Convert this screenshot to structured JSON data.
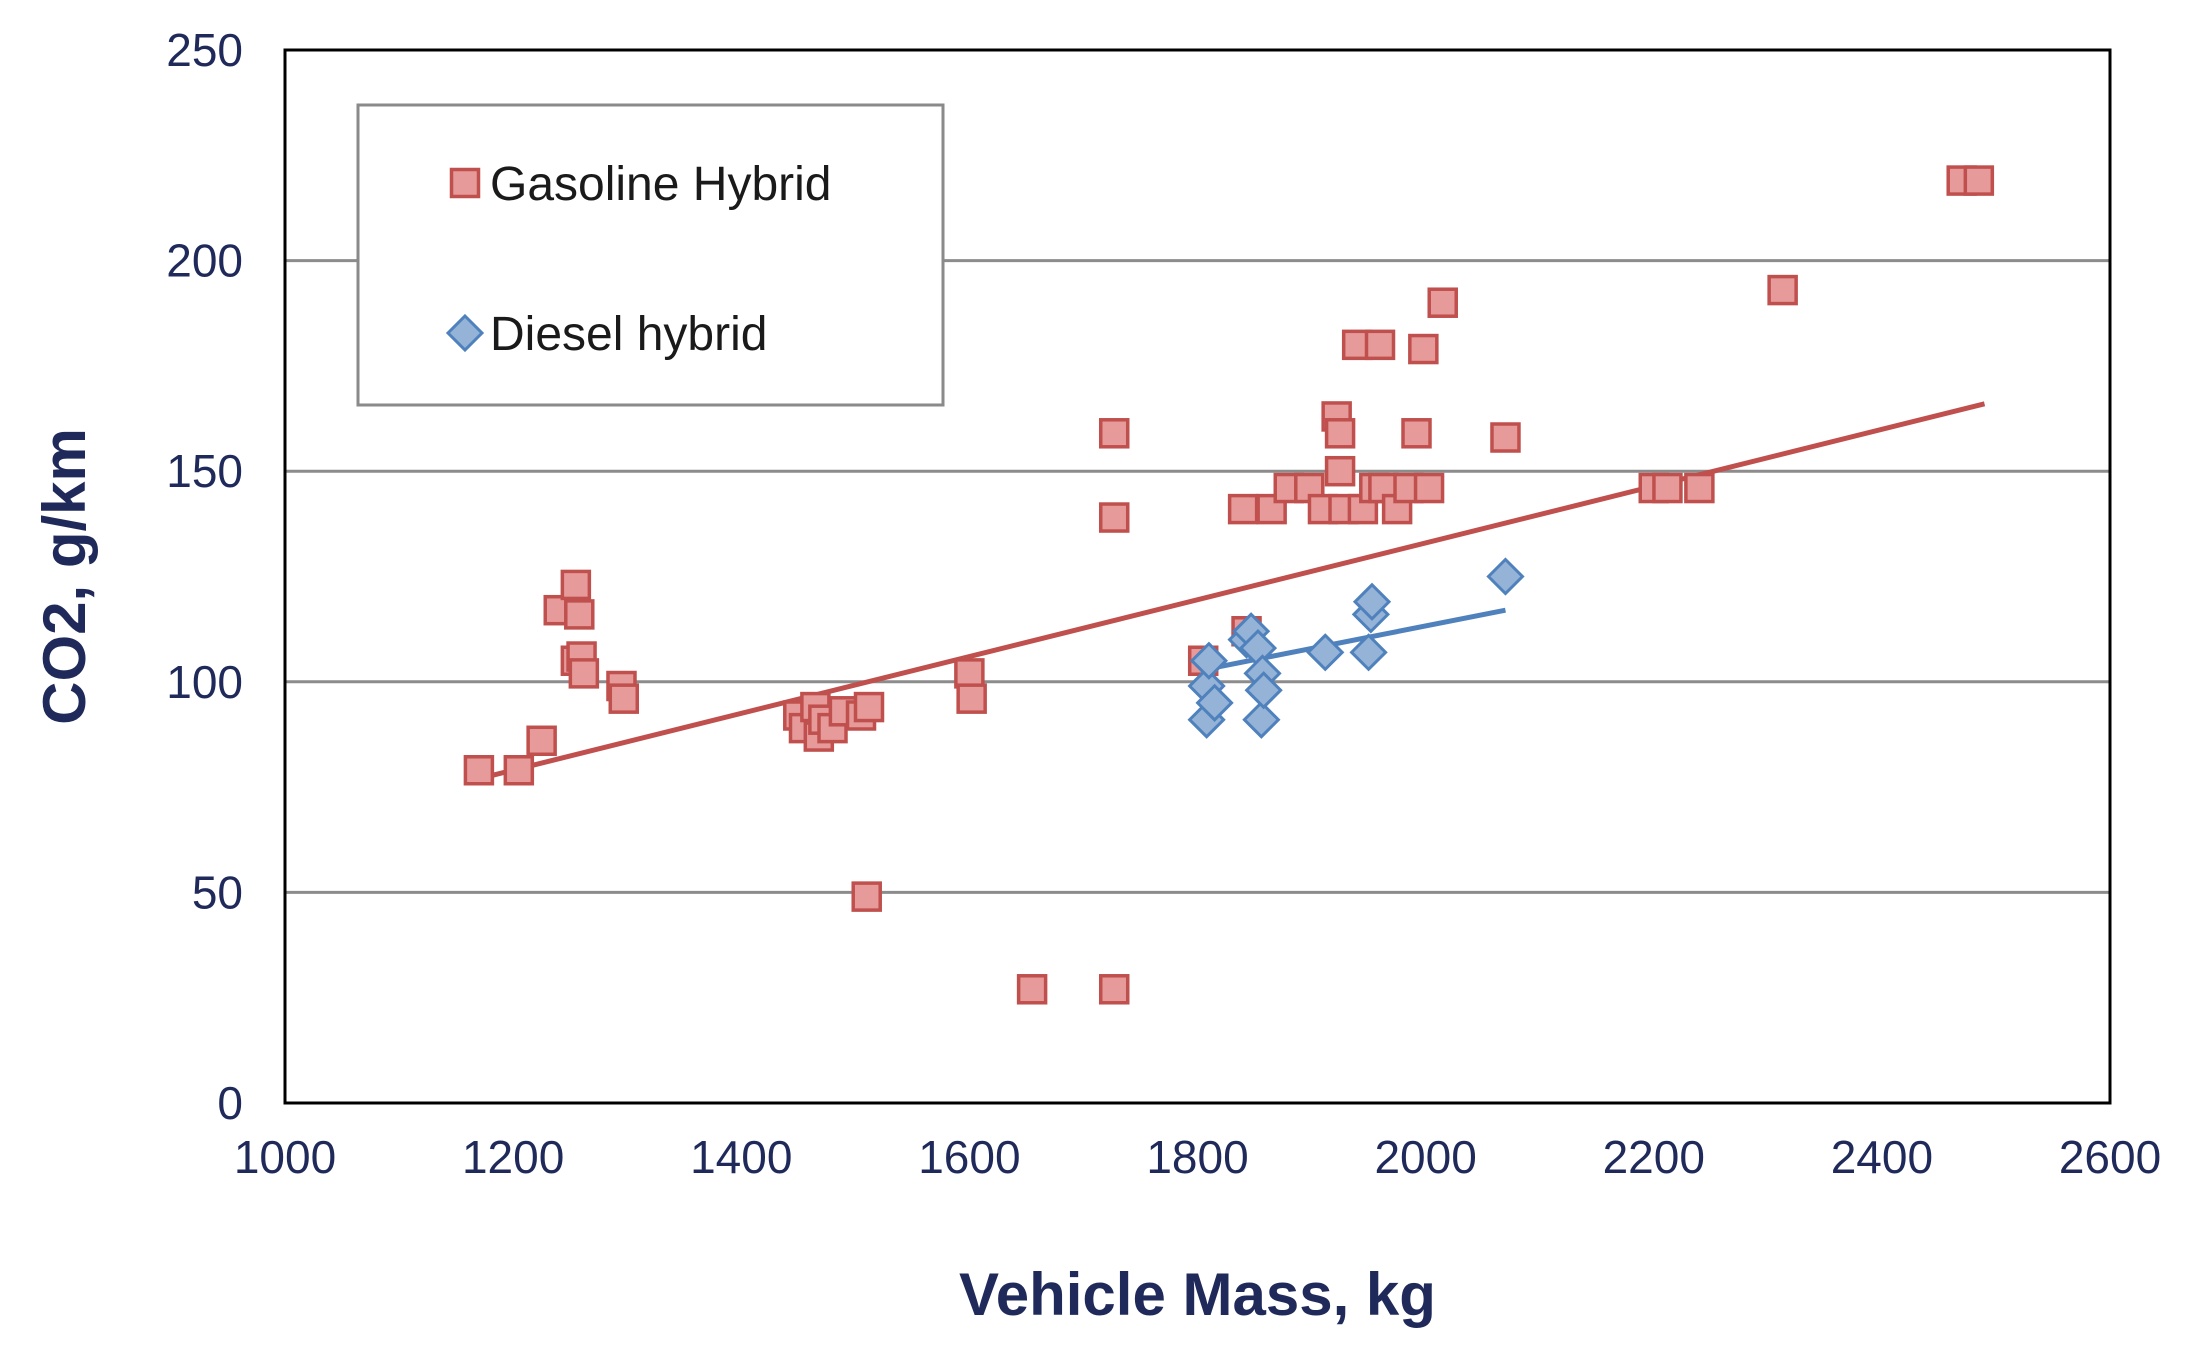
{
  "chart_data": {
    "type": "scatter",
    "title": "",
    "xlabel": "Vehicle Mass, kg",
    "ylabel": "CO2, g/km",
    "xlim": [
      1000,
      2600
    ],
    "ylim": [
      0,
      250
    ],
    "xticks": [
      "1000",
      "1200",
      "1400",
      "1600",
      "1800",
      "2000",
      "2200",
      "2400",
      "2600"
    ],
    "yticks": [
      "0",
      "50",
      "100",
      "150",
      "200",
      "250"
    ],
    "grid": "horizontal",
    "legend": "top-left",
    "colors": {
      "gasoline": "#e69a9a",
      "gasoline_edge": "#c0504d",
      "diesel": "#95b3d7",
      "diesel_edge": "#4f81bd",
      "axis_text": "#1f2a5a"
    },
    "series": [
      {
        "name": "Gasoline Hybrid",
        "marker": "square",
        "points": [
          [
            1170,
            79
          ],
          [
            1205,
            79
          ],
          [
            1225,
            86
          ],
          [
            1240,
            117
          ],
          [
            1255,
            123
          ],
          [
            1258,
            116
          ],
          [
            1255,
            105
          ],
          [
            1260,
            106
          ],
          [
            1262,
            102
          ],
          [
            1295,
            99
          ],
          [
            1297,
            96
          ],
          [
            1450,
            92
          ],
          [
            1455,
            89
          ],
          [
            1465,
            94
          ],
          [
            1468,
            87
          ],
          [
            1472,
            91
          ],
          [
            1480,
            89
          ],
          [
            1490,
            93
          ],
          [
            1505,
            92
          ],
          [
            1512,
            94
          ],
          [
            1510,
            49
          ],
          [
            1600,
            102
          ],
          [
            1602,
            96
          ],
          [
            1655,
            27
          ],
          [
            1727,
            27
          ],
          [
            1727,
            159
          ],
          [
            1727,
            139
          ],
          [
            1805,
            105
          ],
          [
            1840,
            141
          ],
          [
            1843,
            112
          ],
          [
            1865,
            141
          ],
          [
            1880,
            146
          ],
          [
            1898,
            146
          ],
          [
            1910,
            141
          ],
          [
            1922,
            163
          ],
          [
            1925,
            159
          ],
          [
            1925,
            150
          ],
          [
            1928,
            141
          ],
          [
            1940,
            180
          ],
          [
            1945,
            141
          ],
          [
            1955,
            146
          ],
          [
            1960,
            180
          ],
          [
            1963,
            146
          ],
          [
            1975,
            141
          ],
          [
            1985,
            146
          ],
          [
            1992,
            159
          ],
          [
            1998,
            179
          ],
          [
            2003,
            146
          ],
          [
            2015,
            190
          ],
          [
            2070,
            158
          ],
          [
            2200,
            146
          ],
          [
            2212,
            146
          ],
          [
            2240,
            146
          ],
          [
            2313,
            193
          ],
          [
            2470,
            219
          ],
          [
            2485,
            219
          ]
        ],
        "trendline": [
          [
            1170,
            77
          ],
          [
            2490,
            166
          ]
        ]
      },
      {
        "name": "Diesel hybrid",
        "marker": "diamond",
        "points": [
          [
            1808,
            91
          ],
          [
            1808,
            99
          ],
          [
            1810,
            105
          ],
          [
            1815,
            95
          ],
          [
            1843,
            110
          ],
          [
            1847,
            112
          ],
          [
            1853,
            108
          ],
          [
            1856,
            91
          ],
          [
            1857,
            102
          ],
          [
            1858,
            98
          ],
          [
            1912,
            107
          ],
          [
            1950,
            107
          ],
          [
            1952,
            116
          ],
          [
            1953,
            119
          ],
          [
            2070,
            125
          ]
        ],
        "trendline": [
          [
            1808,
            103
          ],
          [
            2070,
            117
          ]
        ]
      }
    ]
  }
}
